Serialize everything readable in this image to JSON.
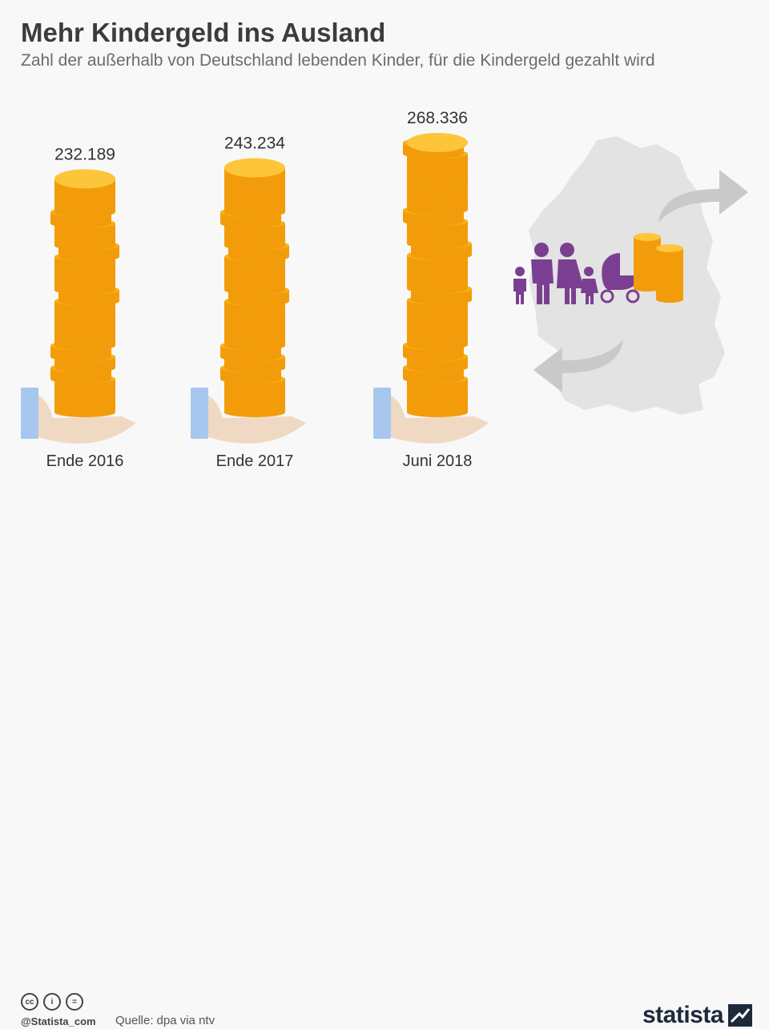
{
  "title": "Mehr Kindergeld ins Ausland",
  "subtitle": "Zahl der außerhalb von Deutschland lebenden Kinder, für die Kindergeld gezahlt wird",
  "chart_data": {
    "type": "bar",
    "categories": [
      "Ende 2016",
      "Ende 2017",
      "Juni 2018"
    ],
    "values": [
      232189,
      243234,
      268336
    ],
    "value_labels": [
      "232.189",
      "243.234",
      "268.336"
    ],
    "title": "Mehr Kindergeld ins Ausland",
    "xlabel": "",
    "ylabel": "",
    "grid": false
  },
  "colors": {
    "coin": "#f7b219",
    "coin_edge": "#f39c0b",
    "coin_top": "#fdc53a",
    "hand": "#f0d9c3",
    "cuff": "#a7c7ee",
    "map": "#e3e3e3",
    "arrow": "#c9c9c9",
    "family": "#7b3f91"
  },
  "footer": {
    "handle": "@Statista_com",
    "source_label": "Quelle:",
    "source": "dpa via ntv",
    "brand": "statista"
  },
  "icons": {
    "license": [
      "cc-icon",
      "by-icon",
      "nd-icon"
    ],
    "family": "family-icon",
    "stroller": "stroller-icon",
    "map": "germany-map-icon"
  }
}
